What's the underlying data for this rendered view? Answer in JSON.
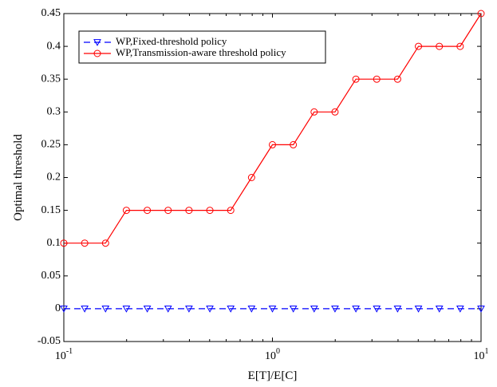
{
  "chart_data": {
    "type": "line",
    "xscale": "log",
    "xlim": [
      0.1,
      10
    ],
    "ylim": [
      -0.05,
      0.45
    ],
    "xlabel": "E[T]/E[C]",
    "ylabel": "Optimal threshold",
    "grid": false,
    "legend_position": "top-left",
    "x_ticks": [
      {
        "value": 0.1,
        "base": "10",
        "exp": "-1"
      },
      {
        "value": 1,
        "base": "10",
        "exp": "0"
      },
      {
        "value": 10,
        "base": "10",
        "exp": "1"
      }
    ],
    "y_ticks": [
      {
        "value": -0.05,
        "label": "-0.05"
      },
      {
        "value": 0,
        "label": "0"
      },
      {
        "value": 0.05,
        "label": "0.05"
      },
      {
        "value": 0.1,
        "label": "0.1"
      },
      {
        "value": 0.15,
        "label": "0.15"
      },
      {
        "value": 0.2,
        "label": "0.2"
      },
      {
        "value": 0.25,
        "label": "0.25"
      },
      {
        "value": 0.3,
        "label": "0.3"
      },
      {
        "value": 0.35,
        "label": "0.35"
      },
      {
        "value": 0.4,
        "label": "0.4"
      },
      {
        "value": 0.45,
        "label": "0.45"
      }
    ],
    "x": [
      0.1,
      0.1259,
      0.1585,
      0.1995,
      0.2512,
      0.3162,
      0.3981,
      0.5012,
      0.631,
      0.7943,
      1,
      1.259,
      1.585,
      1.995,
      2.512,
      3.162,
      3.981,
      5.012,
      6.31,
      7.943,
      10
    ],
    "series": [
      {
        "name": "WP,Fixed-threshold policy",
        "color": "#0000ff",
        "line_style": "dashed",
        "marker": "triangle-down",
        "values": [
          0,
          0,
          0,
          0,
          0,
          0,
          0,
          0,
          0,
          0,
          0,
          0,
          0,
          0,
          0,
          0,
          0,
          0,
          0,
          0,
          0
        ]
      },
      {
        "name": "WP,Transmission-aware threshold policy",
        "color": "#ff0000",
        "line_style": "solid",
        "marker": "circle",
        "values": [
          0.1,
          0.1,
          0.1,
          0.15,
          0.15,
          0.15,
          0.15,
          0.15,
          0.15,
          0.2,
          0.25,
          0.25,
          0.3,
          0.3,
          0.35,
          0.35,
          0.35,
          0.4,
          0.4,
          0.4,
          0.45
        ]
      }
    ]
  }
}
